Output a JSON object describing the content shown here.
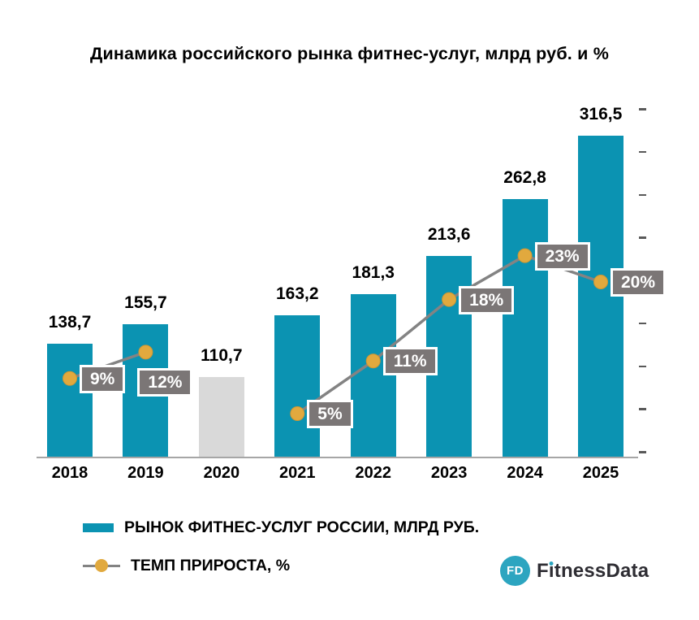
{
  "chart_data": {
    "type": "bar",
    "title": "Динамика российского рынка фитнес-услуг, млрд руб. и %",
    "categories": [
      "2018",
      "2019",
      "2020",
      "2021",
      "2022",
      "2023",
      "2024",
      "2025"
    ],
    "series": [
      {
        "name": "РЫНОК ФИТНЕС-УСЛУГ РОССИИ, МЛРД РУБ.",
        "type": "bar",
        "values": [
          138.7,
          155.7,
          110.7,
          163.2,
          181.3,
          213.6,
          262.8,
          316.5
        ],
        "value_labels": [
          "138,7",
          "155,7",
          "110,7",
          "163,2",
          "181,3",
          "213,6",
          "262,8",
          "316,5"
        ],
        "gray_index": 2
      },
      {
        "name": "ТЕМП ПРИРОСТА, %",
        "type": "line",
        "values": [
          9,
          12,
          null,
          5,
          11,
          18,
          23,
          20
        ],
        "value_labels": [
          "9%",
          "12%",
          null,
          "5%",
          "11%",
          "18%",
          "23%",
          "20%"
        ]
      }
    ],
    "legend_position": "bottom-left",
    "grid": false,
    "x_axis_line": true,
    "right_axis_ticks": 9
  },
  "logo": {
    "circle_text": "FD",
    "brand_f": "F",
    "brand_i": "i",
    "brand_rest": "tnessData"
  },
  "colors": {
    "bar": "#0B93B2",
    "bar_gray": "#D9D9D9",
    "line": "#838383",
    "marker": "#E1A93E",
    "marker_edge": "#CE9733",
    "label_bg": "#7B7676",
    "label_text": "#FFFFFF",
    "axis": "#A6A6A6",
    "tick": "#595959",
    "logo_teal": "#2CA5C0",
    "logo_text": "#2E2D33",
    "text": "#000000"
  }
}
